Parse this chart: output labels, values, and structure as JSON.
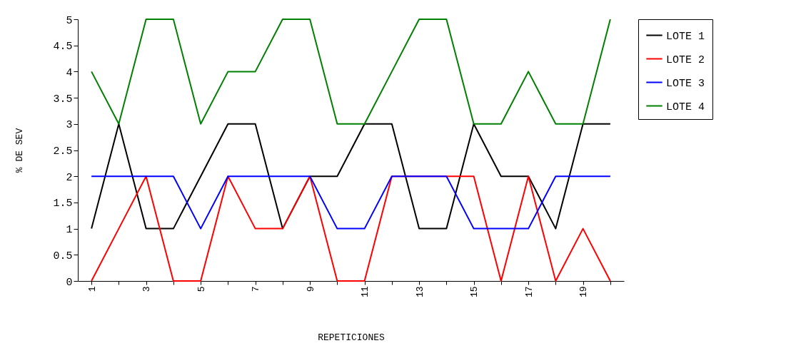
{
  "chart_data": {
    "type": "line",
    "xlabel": "REPETICIONES",
    "ylabel": "% DE SEV",
    "categories": [
      "1",
      null,
      "3",
      null,
      "5",
      null,
      "7",
      null,
      "9",
      null,
      "11",
      null,
      "13",
      null,
      "15",
      null,
      "17",
      null,
      "19",
      null
    ],
    "series": [
      {
        "name": "LOTE 1",
        "color": "#000000",
        "values": [
          1,
          3,
          1,
          1,
          2,
          3,
          3,
          1,
          2,
          2,
          3,
          3,
          1,
          1,
          3,
          2,
          2,
          1,
          3,
          3
        ]
      },
      {
        "name": "LOTE 2",
        "color": "#ff0000",
        "values": [
          0,
          1,
          2,
          0,
          0,
          2,
          1,
          1,
          2,
          0,
          0,
          2,
          2,
          2,
          2,
          0,
          2,
          0,
          1,
          0
        ]
      },
      {
        "name": "LOTE 3",
        "color": "#0000ff",
        "values": [
          2,
          2,
          2,
          2,
          1,
          2,
          2,
          2,
          2,
          1,
          1,
          2,
          2,
          2,
          1,
          1,
          1,
          2,
          2,
          2
        ]
      },
      {
        "name": "LOTE 4",
        "color": "#008000",
        "values": [
          4,
          3,
          5,
          5,
          3,
          4,
          4,
          5,
          5,
          3,
          3,
          4,
          5,
          5,
          3,
          3,
          4,
          3,
          3,
          5
        ]
      }
    ],
    "ylim": [
      0,
      5
    ],
    "yticks": [
      0,
      0.5,
      1,
      1.5,
      2,
      2.5,
      3,
      3.5,
      4,
      4.5,
      5
    ],
    "legend": "right"
  }
}
